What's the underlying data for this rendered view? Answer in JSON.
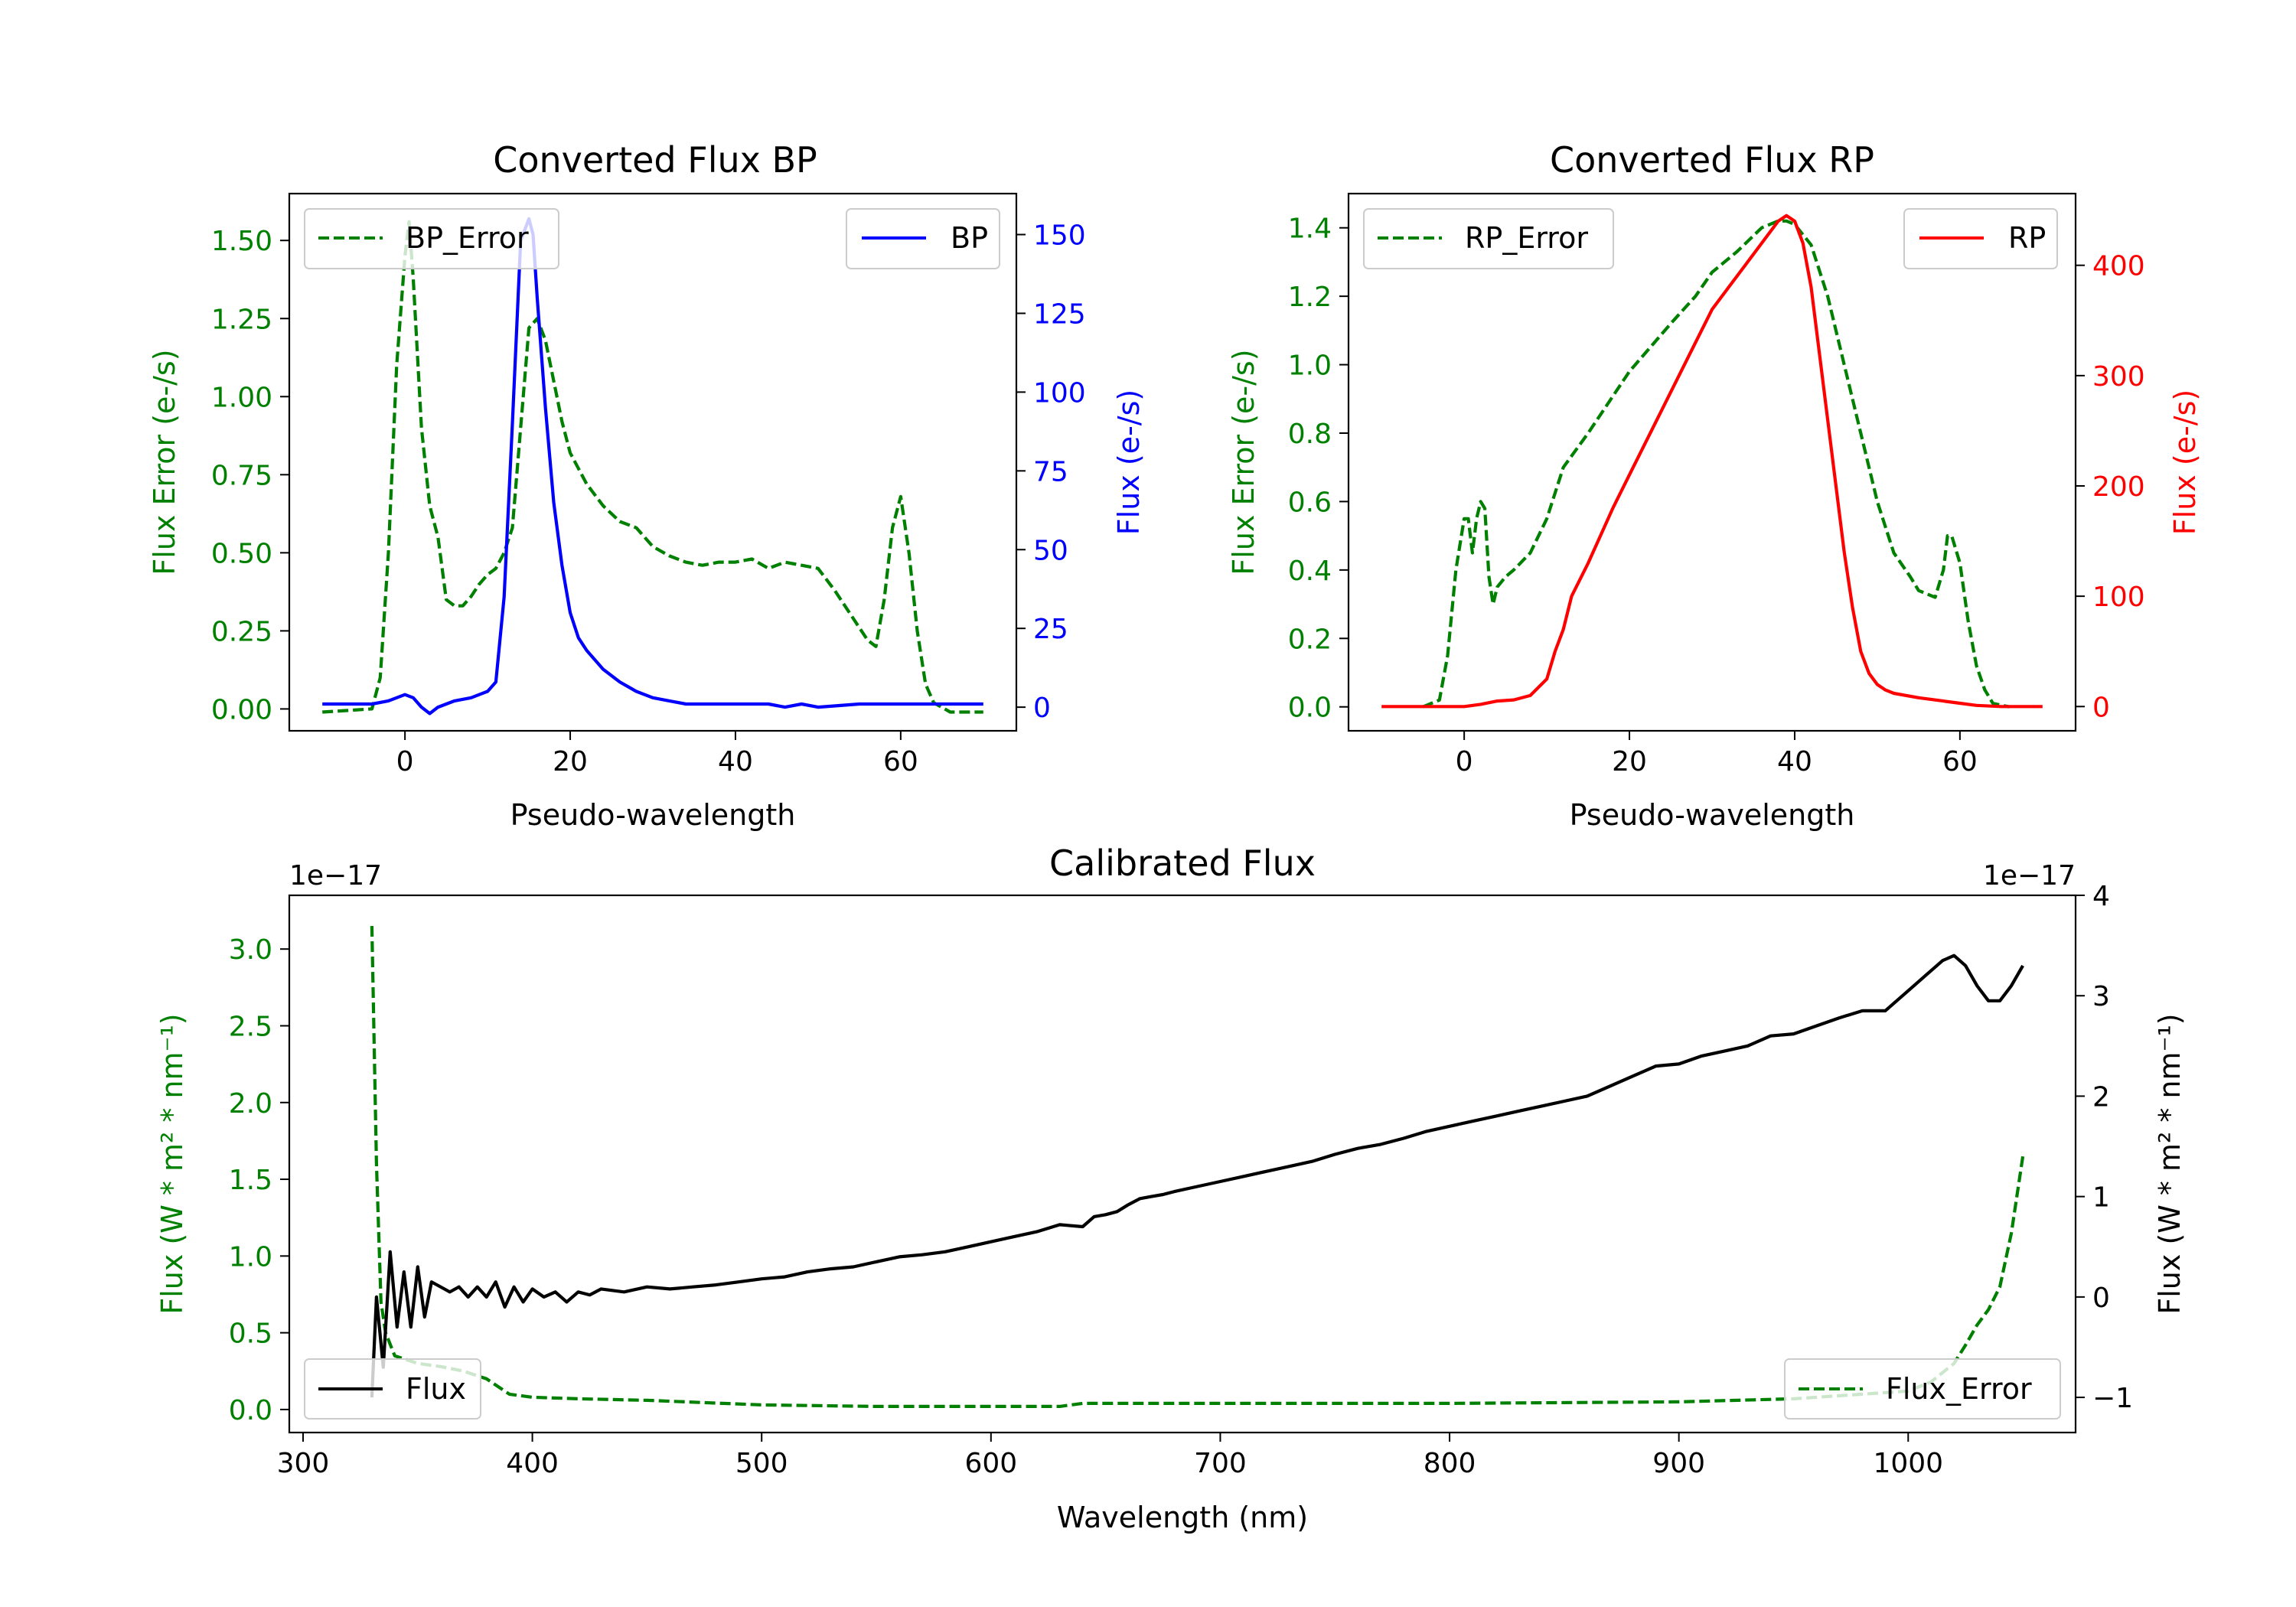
{
  "chart_data": [
    {
      "id": "bp",
      "type": "line",
      "title": "Converted Flux BP",
      "xlabel": "Pseudo-wavelength",
      "xlim": [
        -14,
        74
      ],
      "xticks": [
        0,
        20,
        40,
        60
      ],
      "left_axis": {
        "label": "Flux Error (e-/s)",
        "color": "#008000",
        "ylim": [
          -0.07,
          1.65
        ],
        "ticks": [
          0.0,
          0.25,
          0.5,
          0.75,
          1.0,
          1.25,
          1.5
        ],
        "tick_labels": [
          "0.00",
          "0.25",
          "0.50",
          "0.75",
          "1.00",
          "1.25",
          "1.50"
        ]
      },
      "right_axis": {
        "label": "Flux (e-/s)",
        "color": "#0000ff",
        "ylim": [
          -7.5,
          163
        ],
        "ticks": [
          0,
          25,
          50,
          75,
          100,
          125,
          150
        ],
        "tick_labels": [
          "0",
          "25",
          "50",
          "75",
          "100",
          "125",
          "150"
        ]
      },
      "series": [
        {
          "name": "BP_Error",
          "axis": "left",
          "color": "#008000",
          "style": "dashed",
          "x": [
            -10,
            -4,
            -3,
            -2,
            -1,
            0,
            0.5,
            1,
            2,
            3,
            4,
            5,
            6,
            7,
            8,
            9,
            10,
            11,
            12,
            13,
            14,
            15,
            16,
            17,
            18,
            19,
            20,
            22,
            24,
            26,
            28,
            30,
            32,
            34,
            36,
            38,
            40,
            42,
            44,
            46,
            48,
            50,
            52,
            54,
            56,
            57,
            58,
            59,
            60,
            61,
            62,
            63,
            64,
            66,
            70
          ],
          "y": [
            -0.01,
            0.0,
            0.1,
            0.5,
            1.1,
            1.45,
            1.56,
            1.38,
            0.9,
            0.65,
            0.55,
            0.35,
            0.33,
            0.33,
            0.36,
            0.4,
            0.43,
            0.45,
            0.5,
            0.58,
            0.9,
            1.22,
            1.25,
            1.18,
            1.05,
            0.92,
            0.82,
            0.72,
            0.65,
            0.6,
            0.58,
            0.52,
            0.49,
            0.47,
            0.46,
            0.47,
            0.47,
            0.48,
            0.45,
            0.47,
            0.46,
            0.45,
            0.38,
            0.3,
            0.22,
            0.2,
            0.35,
            0.58,
            0.68,
            0.5,
            0.25,
            0.08,
            0.02,
            -0.01,
            -0.01
          ]
        },
        {
          "name": "BP",
          "axis": "right",
          "color": "#0000ff",
          "style": "solid",
          "x": [
            -10,
            -4,
            -2,
            0,
            1,
            2,
            3,
            4,
            6,
            8,
            10,
            11,
            12,
            13,
            14,
            15,
            15.5,
            16,
            17,
            18,
            19,
            20,
            21,
            22,
            23,
            24,
            26,
            28,
            30,
            32,
            34,
            36,
            38,
            40,
            42,
            44,
            46,
            48,
            50,
            55,
            60,
            65,
            70
          ],
          "y": [
            1,
            1,
            2,
            4,
            3,
            0,
            -2,
            0,
            2,
            3,
            5,
            8,
            35,
            90,
            148,
            155,
            150,
            130,
            95,
            65,
            45,
            30,
            22,
            18,
            15,
            12,
            8,
            5,
            3,
            2,
            1,
            1,
            1,
            1,
            1,
            1,
            0,
            1,
            0,
            1,
            1,
            1,
            1
          ]
        }
      ],
      "legend": [
        {
          "name": "BP_Error",
          "placement": "upper left"
        },
        {
          "name": "BP",
          "placement": "upper right"
        }
      ]
    },
    {
      "id": "rp",
      "type": "line",
      "title": "Converted Flux RP",
      "xlabel": "Pseudo-wavelength",
      "xlim": [
        -14,
        74
      ],
      "xticks": [
        0,
        20,
        40,
        60
      ],
      "left_axis": {
        "label": "Flux Error (e-/s)",
        "color": "#008000",
        "ylim": [
          -0.07,
          1.5
        ],
        "ticks": [
          0.0,
          0.2,
          0.4,
          0.6,
          0.8,
          1.0,
          1.2,
          1.4
        ],
        "tick_labels": [
          "0.0",
          "0.2",
          "0.4",
          "0.6",
          "0.8",
          "1.0",
          "1.2",
          "1.4"
        ]
      },
      "right_axis": {
        "label": "Flux (e-/s)",
        "color": "#ff0000",
        "ylim": [
          -22,
          465
        ],
        "ticks": [
          0,
          100,
          200,
          300,
          400
        ],
        "tick_labels": [
          "0",
          "100",
          "200",
          "300",
          "400"
        ]
      },
      "series": [
        {
          "name": "RP_Error",
          "axis": "left",
          "color": "#008000",
          "style": "dashed",
          "x": [
            -5,
            -3,
            -2,
            -1,
            0,
            0.5,
            1,
            1.5,
            2,
            2.5,
            3,
            3.5,
            4,
            5,
            6,
            8,
            10,
            12,
            15,
            20,
            25,
            28,
            30,
            33,
            36,
            38,
            39,
            40,
            42,
            44,
            46,
            48,
            50,
            52,
            54,
            55,
            56,
            57,
            58,
            58.5,
            59,
            60,
            61,
            62,
            63,
            64,
            66
          ],
          "y": [
            0.0,
            0.02,
            0.15,
            0.4,
            0.55,
            0.55,
            0.45,
            0.55,
            0.6,
            0.58,
            0.38,
            0.3,
            0.35,
            0.38,
            0.4,
            0.45,
            0.55,
            0.7,
            0.8,
            0.98,
            1.12,
            1.2,
            1.27,
            1.33,
            1.4,
            1.42,
            1.42,
            1.41,
            1.35,
            1.2,
            1.0,
            0.8,
            0.6,
            0.45,
            0.38,
            0.34,
            0.33,
            0.32,
            0.4,
            0.5,
            0.5,
            0.42,
            0.25,
            0.12,
            0.05,
            0.01,
            0.0
          ]
        },
        {
          "name": "RP",
          "axis": "right",
          "color": "#ff0000",
          "style": "solid",
          "x": [
            -10,
            -4,
            0,
            2,
            4,
            6,
            8,
            10,
            11,
            12,
            13,
            15,
            18,
            20,
            22,
            24,
            26,
            28,
            30,
            32,
            34,
            36,
            38,
            39,
            40,
            41,
            42,
            43,
            44,
            45,
            46,
            47,
            48,
            49,
            50,
            51,
            52,
            55,
            58,
            60,
            62,
            65,
            70
          ],
          "y": [
            0,
            0,
            0,
            2,
            5,
            6,
            10,
            25,
            50,
            70,
            100,
            130,
            180,
            210,
            240,
            270,
            300,
            330,
            360,
            380,
            400,
            420,
            440,
            445,
            440,
            420,
            380,
            320,
            260,
            200,
            140,
            90,
            50,
            30,
            20,
            15,
            12,
            8,
            5,
            3,
            1,
            0,
            0
          ]
        }
      ],
      "legend": [
        {
          "name": "RP_Error",
          "placement": "upper left"
        },
        {
          "name": "RP",
          "placement": "upper right"
        }
      ]
    },
    {
      "id": "cal",
      "type": "line",
      "title": "Calibrated Flux",
      "xlabel": "Wavelength (nm)",
      "xlim": [
        294,
        1073
      ],
      "xticks": [
        300,
        400,
        500,
        600,
        700,
        800,
        900,
        1000
      ],
      "left_axis": {
        "label": "Flux (W * m² * nm⁻¹)",
        "color": "#008000",
        "offset_text": "1e−17",
        "ylim": [
          -0.15,
          3.35
        ],
        "ticks": [
          0.0,
          0.5,
          1.0,
          1.5,
          2.0,
          2.5,
          3.0
        ],
        "tick_labels": [
          "0.0",
          "0.5",
          "1.0",
          "1.5",
          "2.0",
          "2.5",
          "3.0"
        ]
      },
      "right_axis": {
        "label": "Flux (W * m² * nm⁻¹)",
        "color": "#000000",
        "offset_text": "1e−17",
        "ylim": [
          -1.35,
          4.0
        ],
        "ticks": [
          -1,
          0,
          1,
          2,
          3,
          4
        ],
        "tick_labels": [
          "−1",
          "0",
          "1",
          "2",
          "3",
          "4"
        ]
      },
      "series": [
        {
          "name": "Flux_Error",
          "axis": "left",
          "color": "#008000",
          "style": "dashed",
          "x": [
            330,
            332,
            334,
            336,
            340,
            350,
            360,
            370,
            380,
            390,
            400,
            420,
            450,
            500,
            550,
            600,
            630,
            640,
            700,
            800,
            900,
            950,
            980,
            1000,
            1010,
            1020,
            1025,
            1030,
            1035,
            1040,
            1045,
            1050
          ],
          "y": [
            3.15,
            1.6,
            0.7,
            0.5,
            0.35,
            0.3,
            0.28,
            0.25,
            0.2,
            0.1,
            0.08,
            0.07,
            0.06,
            0.03,
            0.02,
            0.02,
            0.02,
            0.04,
            0.04,
            0.04,
            0.05,
            0.07,
            0.1,
            0.12,
            0.18,
            0.3,
            0.42,
            0.55,
            0.65,
            0.8,
            1.15,
            1.65
          ]
        },
        {
          "name": "Flux",
          "axis": "right",
          "color": "#000000",
          "style": "solid",
          "x": [
            330,
            332,
            335,
            338,
            341,
            344,
            347,
            350,
            353,
            356,
            360,
            364,
            368,
            372,
            376,
            380,
            384,
            388,
            392,
            396,
            400,
            405,
            410,
            415,
            420,
            425,
            430,
            440,
            450,
            460,
            470,
            480,
            490,
            500,
            510,
            520,
            530,
            540,
            550,
            560,
            570,
            580,
            590,
            600,
            610,
            620,
            630,
            640,
            645,
            650,
            655,
            660,
            665,
            670,
            675,
            680,
            690,
            700,
            710,
            720,
            730,
            740,
            750,
            760,
            770,
            780,
            790,
            800,
            810,
            820,
            830,
            840,
            850,
            860,
            870,
            880,
            890,
            900,
            910,
            920,
            930,
            940,
            950,
            960,
            970,
            980,
            990,
            1000,
            1010,
            1015,
            1020,
            1025,
            1030,
            1035,
            1040,
            1045,
            1050
          ],
          "y": [
            -1.0,
            0.0,
            -0.7,
            0.45,
            -0.3,
            0.25,
            -0.3,
            0.3,
            -0.2,
            0.15,
            0.1,
            0.05,
            0.1,
            0.0,
            0.1,
            0.0,
            0.15,
            -0.1,
            0.1,
            -0.05,
            0.08,
            0.0,
            0.05,
            -0.05,
            0.05,
            0.02,
            0.08,
            0.05,
            0.1,
            0.08,
            0.1,
            0.12,
            0.15,
            0.18,
            0.2,
            0.25,
            0.28,
            0.3,
            0.35,
            0.4,
            0.42,
            0.45,
            0.5,
            0.55,
            0.6,
            0.65,
            0.72,
            0.7,
            0.8,
            0.82,
            0.85,
            0.92,
            0.98,
            1.0,
            1.02,
            1.05,
            1.1,
            1.15,
            1.2,
            1.25,
            1.3,
            1.35,
            1.42,
            1.48,
            1.52,
            1.58,
            1.65,
            1.7,
            1.75,
            1.8,
            1.85,
            1.9,
            1.95,
            2.0,
            2.1,
            2.2,
            2.3,
            2.32,
            2.4,
            2.45,
            2.5,
            2.6,
            2.62,
            2.7,
            2.78,
            2.85,
            2.85,
            3.05,
            3.25,
            3.35,
            3.4,
            3.3,
            3.1,
            2.95,
            2.95,
            3.1,
            3.3
          ]
        }
      ],
      "legend": [
        {
          "name": "Flux",
          "placement": "lower left"
        },
        {
          "name": "Flux_Error",
          "placement": "lower right"
        }
      ]
    }
  ]
}
